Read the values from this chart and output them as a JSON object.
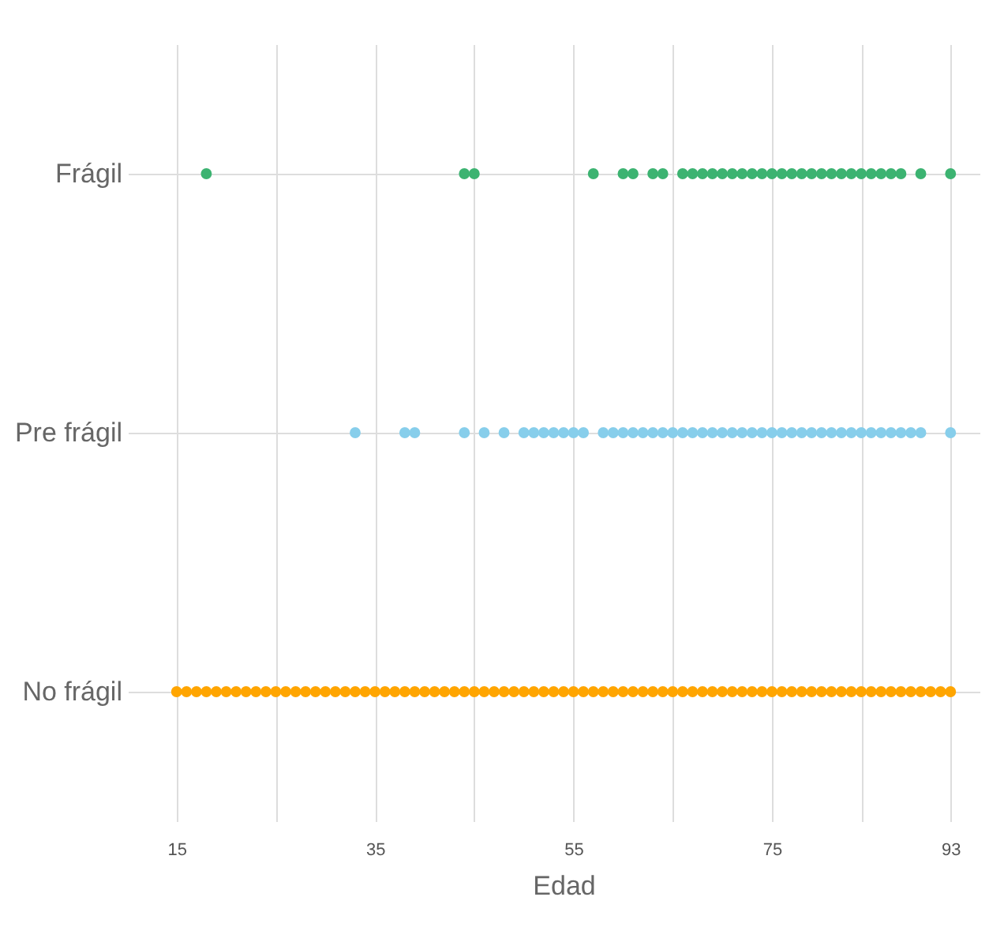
{
  "chart_data": {
    "type": "scatter",
    "orientation": "horizontal",
    "xlabel": "Edad",
    "xlim": [
      12,
      96
    ],
    "xticks": [
      15,
      {
        "value": 25,
        "label": null
      },
      35,
      {
        "value": 45,
        "label": null
      },
      55,
      {
        "value": 65,
        "label": null
      },
      75,
      {
        "value": 84,
        "label": null
      },
      93
    ],
    "categories": [
      "Frágil",
      "Pre frágil",
      "No frágil"
    ],
    "grid": true,
    "legend": false,
    "marker": "circle",
    "series": [
      {
        "color": "#3cb371",
        "values": [
          18,
          44,
          45,
          57,
          60,
          61,
          63,
          64,
          66,
          67,
          68,
          69,
          70,
          71,
          72,
          73,
          74,
          75,
          76,
          77,
          78,
          79,
          80,
          81,
          82,
          83,
          84,
          85,
          86,
          87,
          88,
          90,
          93
        ],
        "x": [
          "Frágil",
          "Frágil",
          "Frágil",
          "Frágil",
          "Frágil",
          "Frágil",
          "Frágil",
          "Frágil",
          "Frágil",
          "Frágil",
          "Frágil",
          "Frágil",
          "Frágil",
          "Frágil",
          "Frágil",
          "Frágil",
          "Frágil",
          "Frágil",
          "Frágil",
          "Frágil",
          "Frágil",
          "Frágil",
          "Frágil",
          "Frágil",
          "Frágil",
          "Frágil",
          "Frágil",
          "Frágil",
          "Frágil",
          "Frágil",
          "Frágil",
          "Frágil",
          "Frágil"
        ]
      },
      {
        "color": "#87ceeb",
        "values": [
          33,
          38,
          39,
          44,
          46,
          48,
          50,
          51,
          52,
          53,
          54,
          55,
          56,
          58,
          59,
          60,
          61,
          62,
          63,
          64,
          65,
          66,
          67,
          68,
          69,
          70,
          71,
          72,
          73,
          74,
          75,
          76,
          77,
          78,
          79,
          80,
          81,
          82,
          83,
          84,
          85,
          86,
          87,
          88,
          89,
          90,
          93
        ],
        "x": [
          "Pre frágil",
          "Pre frágil",
          "Pre frágil",
          "Pre frágil",
          "Pre frágil",
          "Pre frágil",
          "Pre frágil",
          "Pre frágil",
          "Pre frágil",
          "Pre frágil",
          "Pre frágil",
          "Pre frágil",
          "Pre frágil",
          "Pre frágil",
          "Pre frágil",
          "Pre frágil",
          "Pre frágil",
          "Pre frágil",
          "Pre frágil",
          "Pre frágil",
          "Pre frágil",
          "Pre frágil",
          "Pre frágil",
          "Pre frágil",
          "Pre frágil",
          "Pre frágil",
          "Pre frágil",
          "Pre frágil",
          "Pre frágil",
          "Pre frágil",
          "Pre frágil",
          "Pre frágil",
          "Pre frágil",
          "Pre frágil",
          "Pre frágil",
          "Pre frágil",
          "Pre frágil",
          "Pre frágil",
          "Pre frágil",
          "Pre frágil",
          "Pre frágil",
          "Pre frágil",
          "Pre frágil",
          "Pre frágil",
          "Pre frágil",
          "Pre frágil",
          "Pre frágil"
        ]
      },
      {
        "color": "#ffa500",
        "values": [
          15,
          16,
          17,
          18,
          19,
          20,
          21,
          22,
          23,
          24,
          25,
          26,
          27,
          28,
          29,
          30,
          31,
          32,
          33,
          34,
          35,
          36,
          37,
          38,
          39,
          40,
          41,
          42,
          43,
          44,
          45,
          46,
          47,
          48,
          49,
          50,
          51,
          52,
          53,
          54,
          55,
          56,
          57,
          58,
          59,
          60,
          61,
          62,
          63,
          64,
          65,
          66,
          67,
          68,
          69,
          70,
          71,
          72,
          73,
          74,
          75,
          76,
          77,
          78,
          79,
          80,
          81,
          82,
          83,
          84,
          85,
          86,
          87,
          88,
          89,
          90,
          91,
          92,
          93
        ],
        "x": [
          "No frágil",
          "No frágil",
          "No frágil",
          "No frágil",
          "No frágil",
          "No frágil",
          "No frágil",
          "No frágil",
          "No frágil",
          "No frágil",
          "No frágil",
          "No frágil",
          "No frágil",
          "No frágil",
          "No frágil",
          "No frágil",
          "No frágil",
          "No frágil",
          "No frágil",
          "No frágil",
          "No frágil",
          "No frágil",
          "No frágil",
          "No frágil",
          "No frágil",
          "No frágil",
          "No frágil",
          "No frágil",
          "No frágil",
          "No frágil",
          "No frágil",
          "No frágil",
          "No frágil",
          "No frágil",
          "No frágil",
          "No frágil",
          "No frágil",
          "No frágil",
          "No frágil",
          "No frágil",
          "No frágil",
          "No frágil",
          "No frágil",
          "No frágil",
          "No frágil",
          "No frágil",
          "No frágil",
          "No frágil",
          "No frágil",
          "No frágil",
          "No frágil",
          "No frágil",
          "No frágil",
          "No frágil",
          "No frágil",
          "No frágil",
          "No frágil",
          "No frágil",
          "No frágil",
          "No frágil",
          "No frágil",
          "No frágil",
          "No frágil",
          "No frágil",
          "No frágil",
          "No frágil",
          "No frágil",
          "No frágil",
          "No frágil",
          "No frágil",
          "No frágil",
          "No frágil",
          "No frágil",
          "No frágil",
          "No frágil",
          "No frágil",
          "No frágil",
          "No frágil",
          "No frágil"
        ]
      }
    ]
  }
}
